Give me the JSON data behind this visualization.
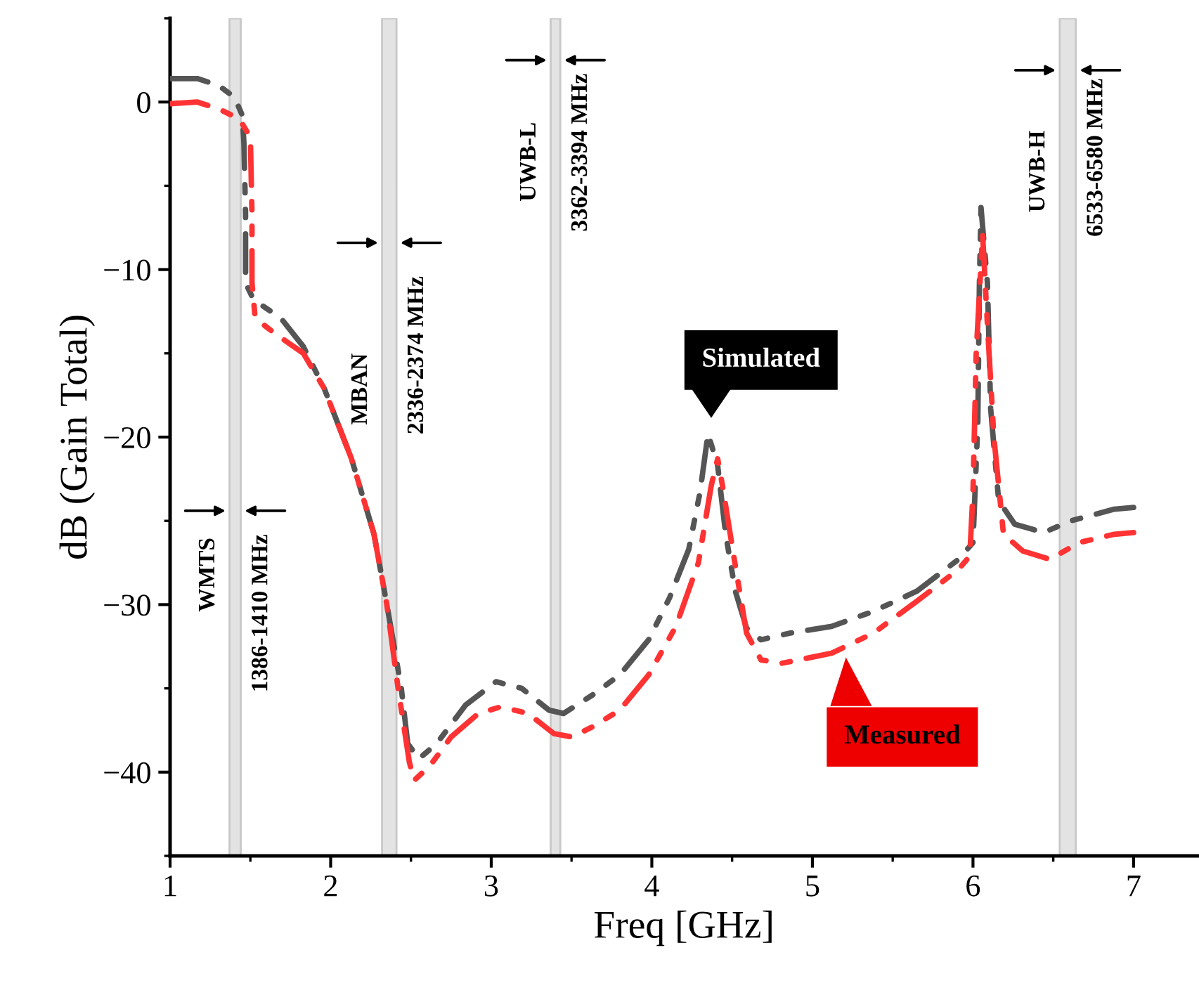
{
  "chart_data": {
    "type": "line",
    "xlabel": "Freq [GHz]",
    "ylabel": "dB (Gain Total)",
    "xlim": [
      1,
      7.4
    ],
    "ylim": [
      -45,
      5
    ],
    "xticks": [
      1,
      2,
      3,
      4,
      5,
      6,
      7
    ],
    "yticks": [
      0,
      -10,
      -20,
      -30,
      -40
    ],
    "grid": false,
    "legend": false,
    "line_style": "dashed",
    "marker": "none",
    "series": [
      {
        "color": "#555555",
        "x": [
          1.0,
          1.17,
          1.3,
          1.4,
          1.45,
          1.46,
          1.47,
          1.47,
          1.52,
          1.69,
          1.83,
          1.96,
          2.13,
          2.27,
          2.35,
          2.44,
          2.48,
          2.55,
          2.66,
          2.84,
          3.03,
          3.19,
          3.36,
          3.45,
          3.63,
          3.8,
          3.98,
          4.11,
          4.23,
          4.3,
          4.35,
          4.41,
          4.46,
          4.52,
          4.59,
          4.68,
          4.86,
          5.12,
          5.38,
          5.65,
          5.91,
          6.0,
          6.03,
          6.04,
          6.05,
          6.09,
          6.11,
          6.16,
          6.26,
          6.44,
          6.61,
          6.88,
          7.0
        ],
        "values": [
          1.4,
          1.4,
          1.0,
          0.3,
          -0.8,
          -2.5,
          -6.7,
          -10.8,
          -11.8,
          -12.9,
          -14.6,
          -17.1,
          -21.3,
          -25.8,
          -30,
          -35,
          -38.3,
          -39.2,
          -38.3,
          -36,
          -34.6,
          -35,
          -36.3,
          -36.5,
          -35.4,
          -34.2,
          -32.1,
          -29.6,
          -26.7,
          -23.3,
          -19.8,
          -21.7,
          -25.8,
          -29.2,
          -31.4,
          -32.1,
          -31.7,
          -31.3,
          -30.4,
          -29.2,
          -27.3,
          -26.3,
          -19.2,
          -10.8,
          -6.3,
          -10.8,
          -18.3,
          -23.8,
          -25.2,
          -25.7,
          -25,
          -24.3,
          -24.2
        ]
      },
      {
        "color": "#ff3333",
        "x": [
          1.0,
          1.17,
          1.3,
          1.43,
          1.5,
          1.51,
          1.51,
          1.53,
          1.65,
          1.83,
          1.96,
          2.13,
          2.27,
          2.35,
          2.42,
          2.49,
          2.52,
          2.62,
          2.75,
          2.92,
          3.06,
          3.23,
          3.39,
          3.5,
          3.63,
          3.8,
          3.98,
          4.15,
          4.29,
          4.37,
          4.41,
          4.44,
          4.51,
          4.59,
          4.68,
          4.81,
          5.12,
          5.38,
          5.65,
          5.91,
          5.98,
          6.0,
          6.02,
          6.06,
          6.09,
          6.13,
          6.19,
          6.31,
          6.48,
          6.66,
          6.88,
          7.0
        ],
        "values": [
          -0.1,
          0,
          -0.4,
          -1.0,
          -2.1,
          -6.7,
          -10.8,
          -12.9,
          -13.8,
          -15,
          -17.1,
          -21.3,
          -25.8,
          -30,
          -35,
          -39.4,
          -40.5,
          -39.6,
          -37.9,
          -36.5,
          -36.1,
          -36.5,
          -37.7,
          -37.9,
          -37.3,
          -36.3,
          -34.2,
          -31.3,
          -27.5,
          -22.9,
          -21.3,
          -22.9,
          -27.1,
          -31.7,
          -33.3,
          -33.5,
          -32.9,
          -31.7,
          -29.8,
          -27.9,
          -27.1,
          -23.3,
          -15,
          -7.9,
          -13.3,
          -20,
          -25.8,
          -26.8,
          -27.3,
          -26.3,
          -25.8,
          -25.7
        ]
      }
    ],
    "bands": [
      {
        "axis": "x",
        "from": 1.37,
        "to": 1.44,
        "label": "WMTS",
        "color": "#e3e3e3"
      },
      {
        "axis": "x",
        "from": 2.32,
        "to": 2.41,
        "label": "MBAN",
        "color": "#e3e3e3"
      },
      {
        "axis": "x",
        "from": 3.37,
        "to": 3.43,
        "label": "UWB-L",
        "color": "#e3e3e3"
      },
      {
        "axis": "x",
        "from": 6.54,
        "to": 6.64,
        "label": "UWB-H",
        "color": "#e3e3e3"
      }
    ],
    "annotations": [
      "1386-1410 MHz",
      "2336-2374 MHz",
      "3362-3394 MHz",
      "6533-6580 MHz",
      "Simulated",
      "Measured"
    ]
  }
}
